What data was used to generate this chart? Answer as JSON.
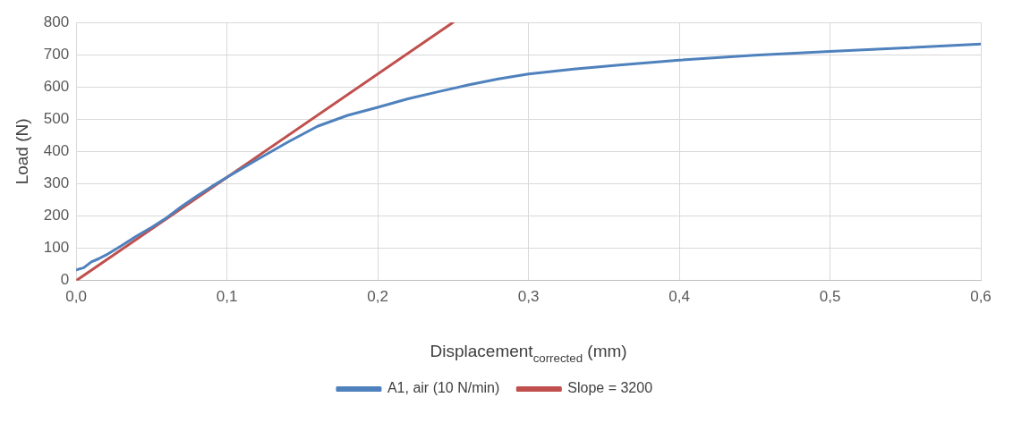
{
  "chart_data": {
    "type": "line",
    "xlabel": "Displacement$_{corrected}$ (mm)",
    "ylabel": "Load (N)",
    "xlim": [
      0,
      0.6
    ],
    "xticks": [
      {
        "value": 0,
        "label": "0,0"
      },
      {
        "value": 0.1,
        "label": "0,1"
      },
      {
        "value": 0.2,
        "label": "0,2"
      },
      {
        "value": 0.3,
        "label": "0,3"
      },
      {
        "value": 0.4,
        "label": "0,4"
      },
      {
        "value": 0.5,
        "label": "0,5"
      },
      {
        "value": 0.6,
        "label": "0,6"
      }
    ],
    "ylim": [
      0,
      800
    ],
    "yticks": [
      0,
      100,
      200,
      300,
      400,
      500,
      600,
      700,
      800
    ],
    "grid": true,
    "legend": "bottom",
    "marker": "none",
    "series": [
      {
        "name": "A1, air (10 N/min)",
        "color": "#4f81bd",
        "x": [
          0,
          0.005,
          0.01,
          0.015,
          0.02,
          0.03,
          0.04,
          0.05,
          0.06,
          0.07,
          0.08,
          0.09,
          0.1,
          0.12,
          0.14,
          0.16,
          0.18,
          0.2,
          0.22,
          0.24,
          0.26,
          0.28,
          0.3,
          0.33,
          0.36,
          0.4,
          0.45,
          0.5,
          0.55,
          0.6
        ],
        "values": [
          33,
          40,
          58,
          68,
          80,
          108,
          138,
          165,
          195,
          230,
          262,
          292,
          320,
          375,
          428,
          478,
          512,
          537,
          563,
          585,
          606,
          625,
          640,
          655,
          668,
          683,
          698,
          710,
          721,
          733
        ]
      },
      {
        "name": "Slope = 3200",
        "color": "#c0504d",
        "x": [
          0,
          0.25
        ],
        "values": [
          0,
          800
        ]
      }
    ]
  }
}
